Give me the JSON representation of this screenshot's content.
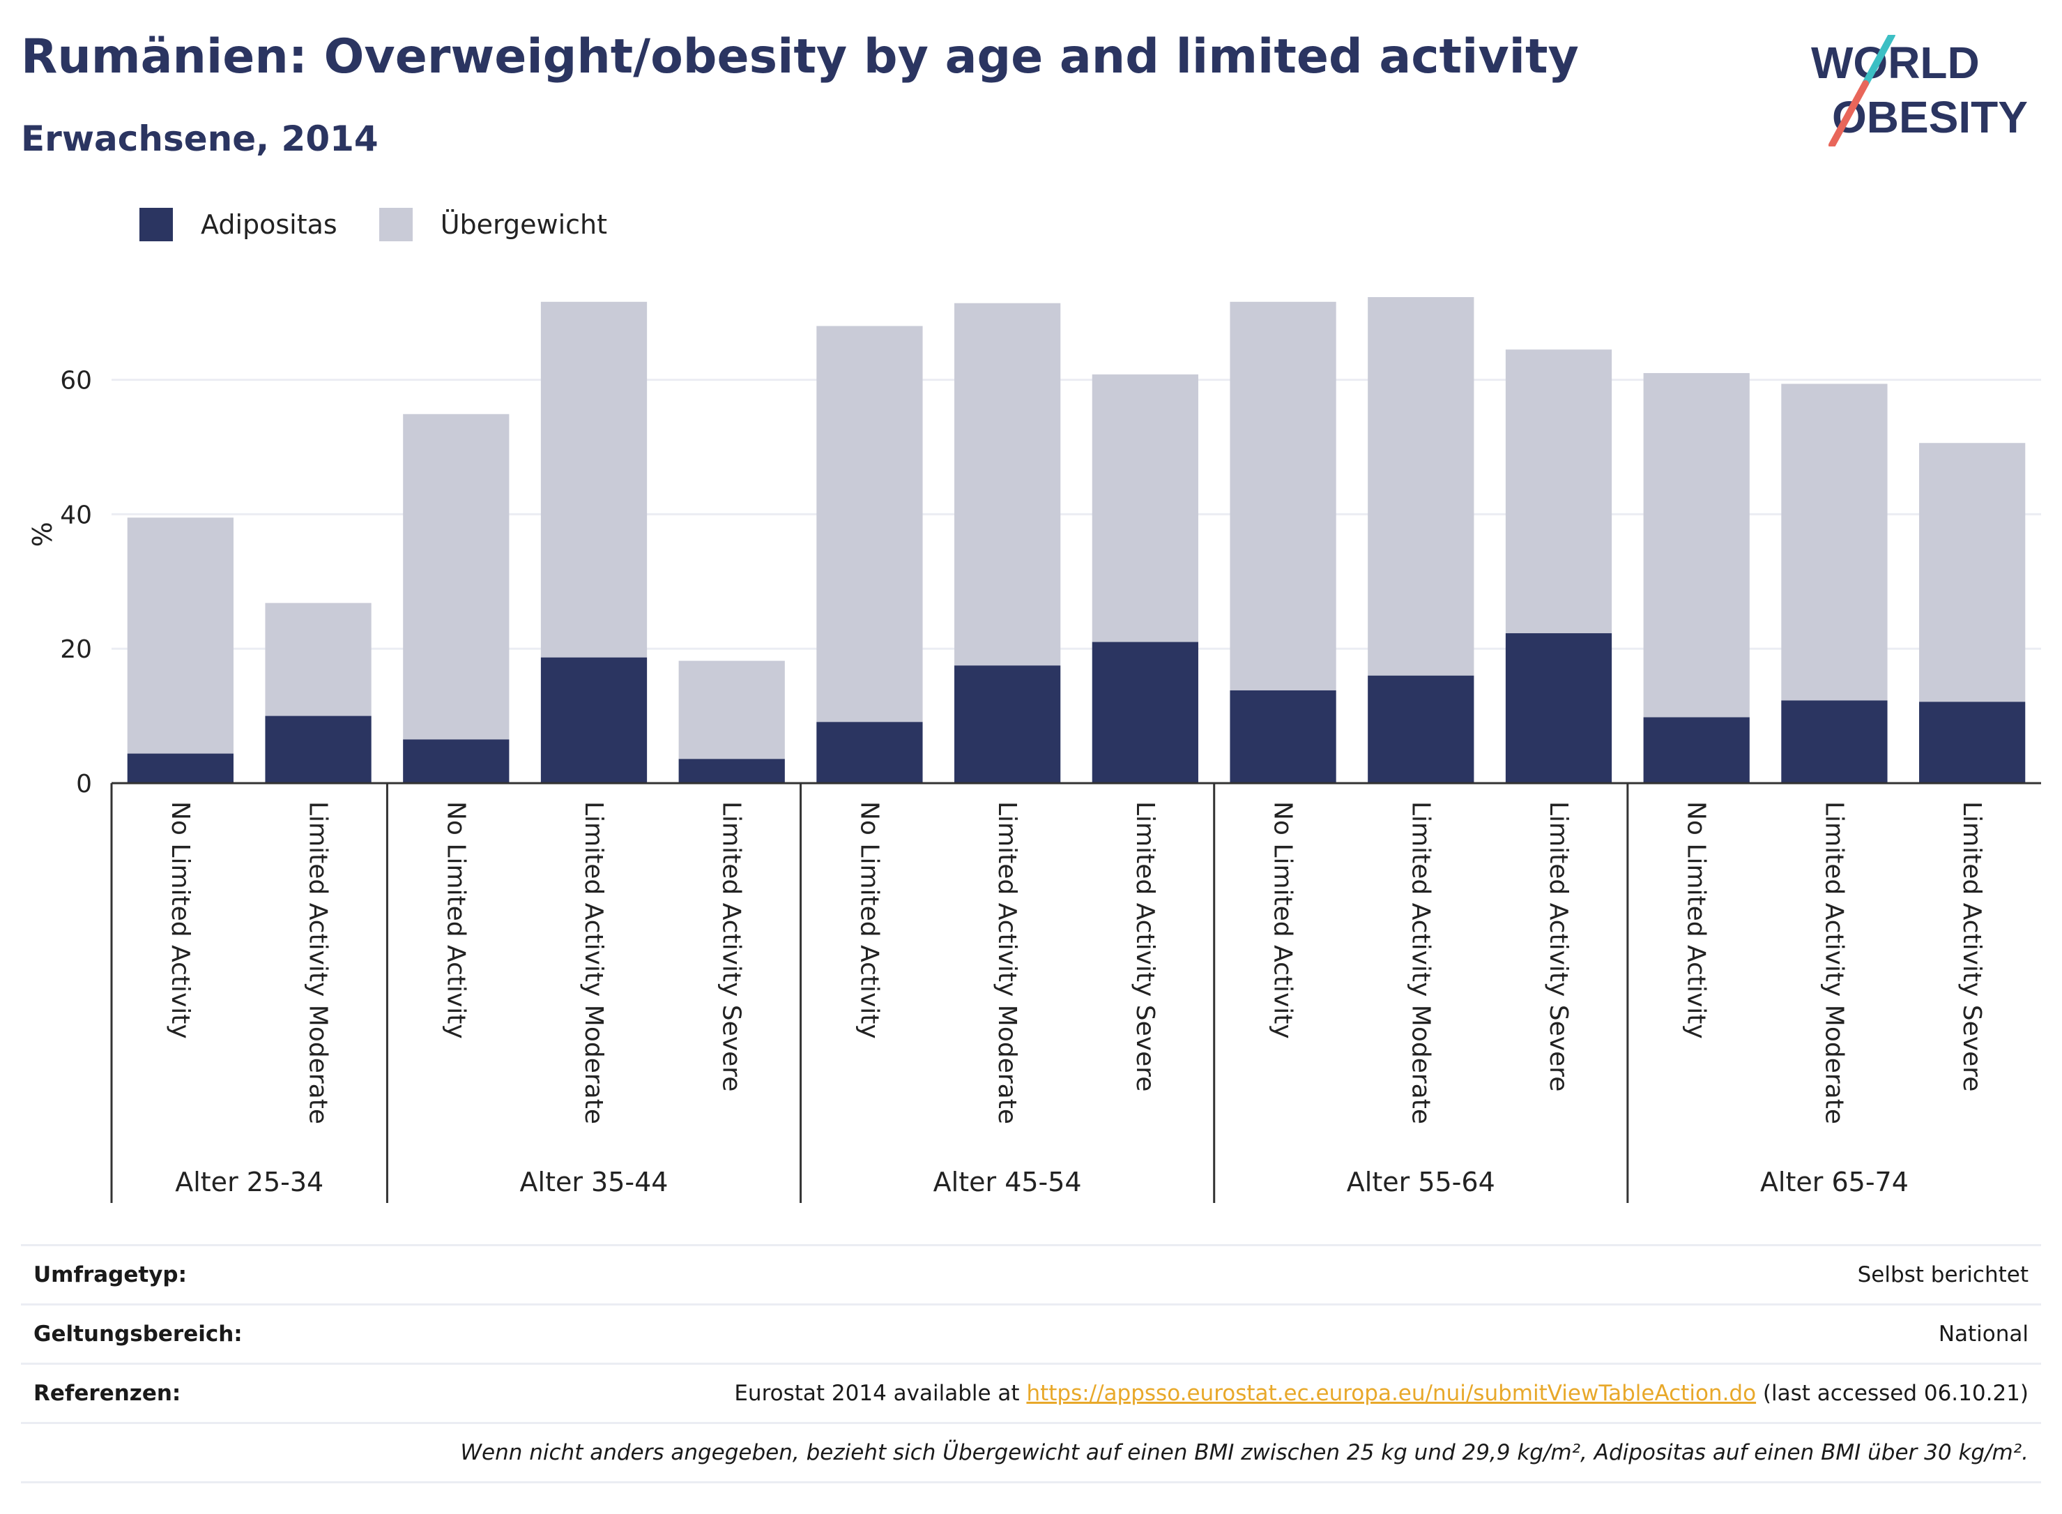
{
  "header": {
    "title": "Rumänien: Overweight/obesity by age and limited activity",
    "subtitle": "Erwachsene, 2014"
  },
  "logo": {
    "line1": "WORLD",
    "line2": "OBESITY",
    "colors": {
      "text": "#2b3561",
      "slash_top": "#3cbfc4",
      "slash_bottom": "#e8665a"
    }
  },
  "colors": {
    "obesity": "#2b3561",
    "overweight": "#c9cbd7",
    "grid": "#ebedf3",
    "axis": "#333333"
  },
  "chart_data": {
    "type": "bar",
    "stacked": true,
    "ylabel": "%",
    "ylim": [
      0,
      75
    ],
    "yticks": [
      0,
      20,
      40,
      60
    ],
    "legend": [
      {
        "name": "Adipositas",
        "color": "#2b3561"
      },
      {
        "name": "Übergewicht",
        "color": "#c9cbd7"
      }
    ],
    "groups": [
      {
        "label": "Alter 25-34",
        "bars": [
          {
            "category": "No Limited Activity",
            "obesity": 4.4,
            "total": 39.5
          },
          {
            "category": "Limited Activity Moderate",
            "obesity": 10.0,
            "total": 26.8
          }
        ]
      },
      {
        "label": "Alter 35-44",
        "bars": [
          {
            "category": "No Limited Activity",
            "obesity": 6.5,
            "total": 54.9
          },
          {
            "category": "Limited Activity Moderate",
            "obesity": 18.7,
            "total": 71.6
          },
          {
            "category": "Limited Activity Severe",
            "obesity": 3.6,
            "total": 18.2
          }
        ]
      },
      {
        "label": "Alter 45-54",
        "bars": [
          {
            "category": "No Limited Activity",
            "obesity": 9.1,
            "total": 68.0
          },
          {
            "category": "Limited Activity Moderate",
            "obesity": 17.5,
            "total": 71.4
          },
          {
            "category": "Limited Activity Severe",
            "obesity": 21.0,
            "total": 60.8
          }
        ]
      },
      {
        "label": "Alter 55-64",
        "bars": [
          {
            "category": "No Limited Activity",
            "obesity": 13.8,
            "total": 71.6
          },
          {
            "category": "Limited Activity Moderate",
            "obesity": 16.0,
            "total": 72.3
          },
          {
            "category": "Limited Activity Severe",
            "obesity": 22.3,
            "total": 64.5
          }
        ]
      },
      {
        "label": "Alter 65-74",
        "bars": [
          {
            "category": "No Limited Activity",
            "obesity": 9.8,
            "total": 61.0
          },
          {
            "category": "Limited Activity Moderate",
            "obesity": 12.3,
            "total": 59.4
          },
          {
            "category": "Limited Activity Severe",
            "obesity": 12.1,
            "total": 50.6
          }
        ]
      }
    ]
  },
  "info": {
    "survey_label": "Umfragetyp:",
    "survey_value": "Selbst berichtet",
    "scope_label": "Geltungsbereich:",
    "scope_value": "National",
    "ref_label": "Referenzen:",
    "ref_prefix": "Eurostat 2014 available at ",
    "ref_link": "https://appsso.eurostat.ec.europa.eu/nui/submitViewTableAction.do",
    "ref_suffix": " (last accessed 06.10.21)",
    "note": "Wenn nicht anders angegeben, bezieht sich Übergewicht auf einen BMI zwischen 25 kg und 29,9 kg/m², Adipositas auf einen BMI über 30 kg/m²."
  }
}
